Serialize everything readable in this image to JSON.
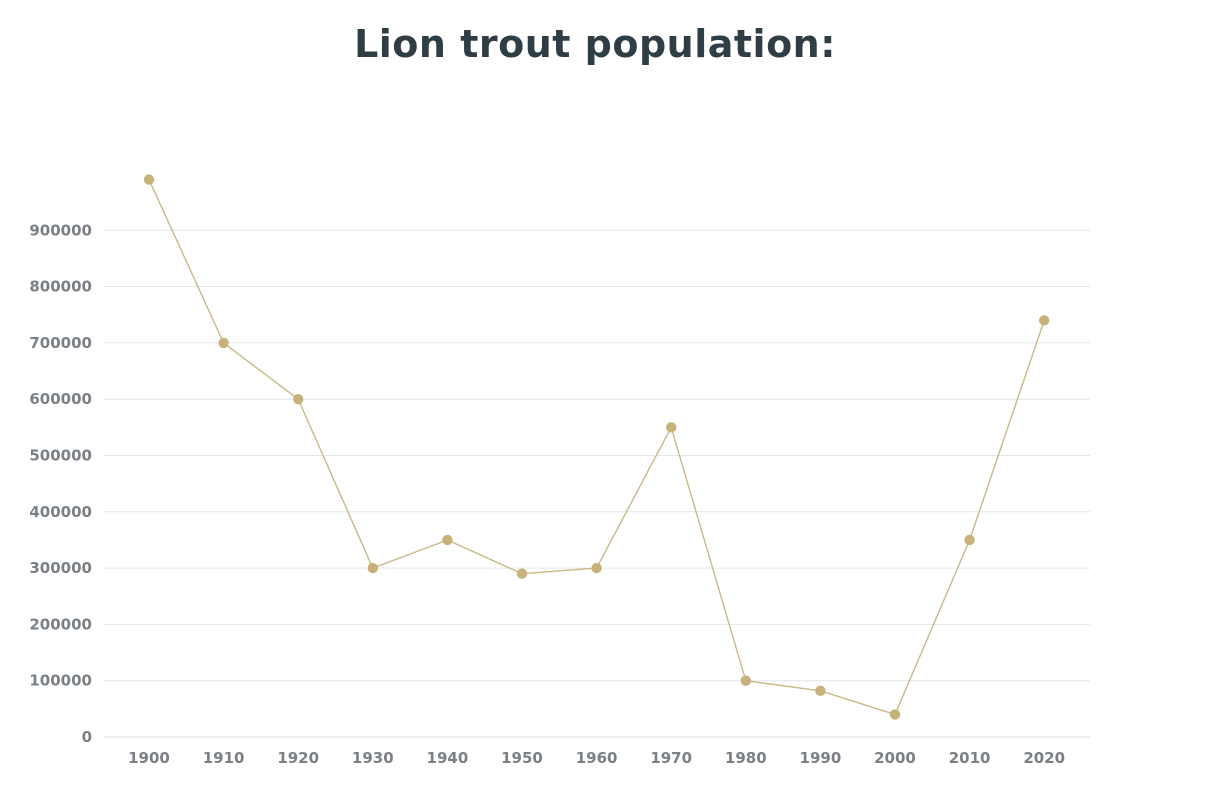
{
  "chart_data": {
    "type": "line",
    "title": "Lion trout population:",
    "xlabel": "",
    "ylabel": "",
    "x": [
      "1900",
      "1910",
      "1920",
      "1930",
      "1940",
      "1950",
      "1960",
      "1970",
      "1980",
      "1990",
      "2000",
      "2010",
      "2020"
    ],
    "series": [
      {
        "values": [
          990000,
          700000,
          600000,
          300000,
          350000,
          290000,
          300000,
          550000,
          100000,
          82000,
          40000,
          350000,
          740000
        ]
      }
    ],
    "ylim": [
      0,
      900000
    ],
    "yticks": [
      "0",
      "100000",
      "200000",
      "300000",
      "400000",
      "500000",
      "600000",
      "700000",
      "800000",
      "900000"
    ],
    "grid": true,
    "legend": "none",
    "colors": {
      "line": "#c9b986",
      "point": "#c7b27a",
      "grid": "#e3e7ea",
      "axis": "#d5dde2",
      "title": "#2f3d45",
      "tick_text": "#7b8086"
    }
  }
}
